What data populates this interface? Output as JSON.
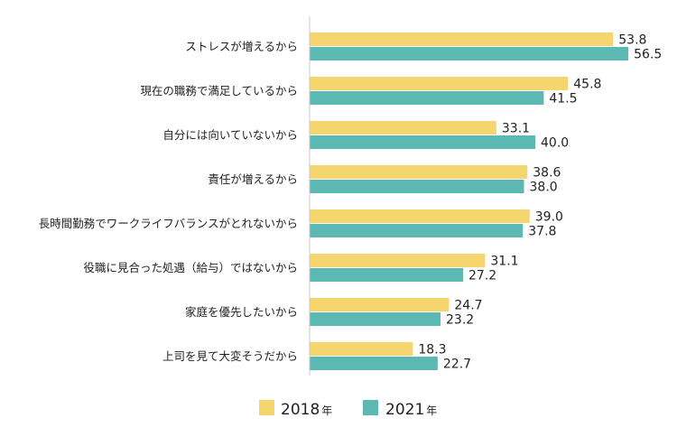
{
  "chart_data": {
    "type": "bar",
    "orientation": "horizontal",
    "categories": [
      "ストレスが増えるから",
      "現在の職務で満足しているから",
      "自分には向いていないから",
      "責任が増えるから",
      "長時間勤務でワークライフバランスがとれないから",
      "役職に見合った処遇（給与）ではないから",
      "家庭を優先したいから",
      "上司を見て大変そうだから"
    ],
    "series": [
      {
        "name": "2018年",
        "color": "#F5D56E",
        "values": [
          53.8,
          45.8,
          33.1,
          38.6,
          39.0,
          31.1,
          24.7,
          18.3
        ]
      },
      {
        "name": "2021年",
        "color": "#5CB8B2",
        "values": [
          56.5,
          41.5,
          40.0,
          38.0,
          37.8,
          27.2,
          23.2,
          22.7
        ]
      }
    ],
    "legend": [
      {
        "year": "2018",
        "suffix": "年"
      },
      {
        "year": "2021",
        "suffix": "年"
      }
    ],
    "xlim": [
      0,
      60
    ],
    "value_decimals": 1,
    "grid": false,
    "legend_position": "bottom"
  }
}
